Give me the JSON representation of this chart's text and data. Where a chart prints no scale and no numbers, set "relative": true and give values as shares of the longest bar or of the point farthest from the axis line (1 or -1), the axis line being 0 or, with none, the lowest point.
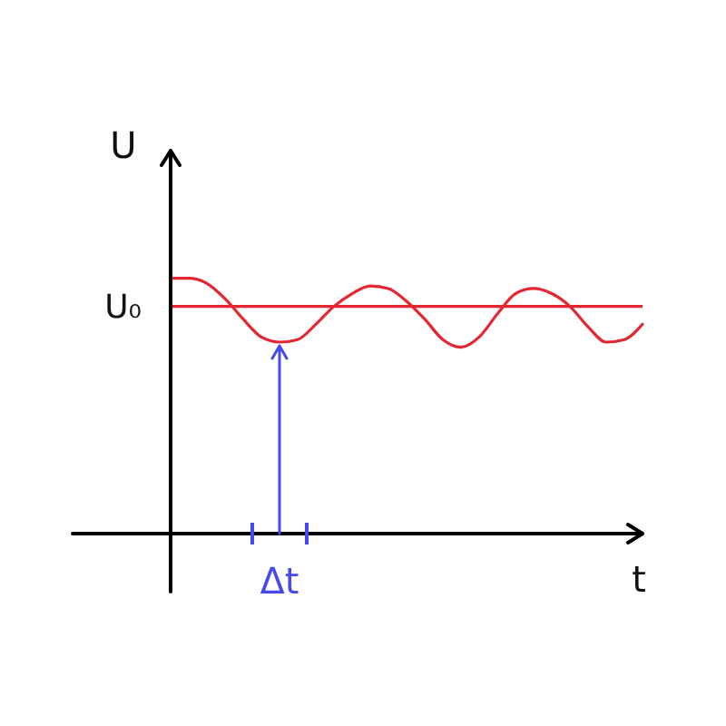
{
  "chart_data": {
    "type": "line",
    "xlabel": "t",
    "ylabel": "U",
    "relative": true,
    "tick_labels": false,
    "marker": "none",
    "line_style": "solid",
    "categories": [
      null,
      null,
      null,
      null,
      null,
      null,
      null,
      null,
      null,
      null,
      null,
      null,
      null,
      null,
      null,
      null,
      null,
      null,
      null,
      null,
      null,
      null,
      null,
      null,
      null,
      null,
      null
    ],
    "values": [
      1,
      1,
      0.98,
      0.92,
      0.84,
      0.77,
      0.75,
      0.76,
      0.82,
      0.89,
      0.94,
      0.97,
      0.96,
      0.91,
      0.84,
      0.76,
      0.73,
      0.77,
      0.86,
      0.94,
      0.96,
      0.94,
      0.89,
      0.81,
      0.75,
      0.76,
      0.82
    ],
    "color": "#e3262f",
    "ref_lines": [
      {
        "axis": "y",
        "value": 0.89,
        "label": "U₀",
        "color": "#e3262f"
      }
    ],
    "annotations": [
      "Δt"
    ]
  }
}
